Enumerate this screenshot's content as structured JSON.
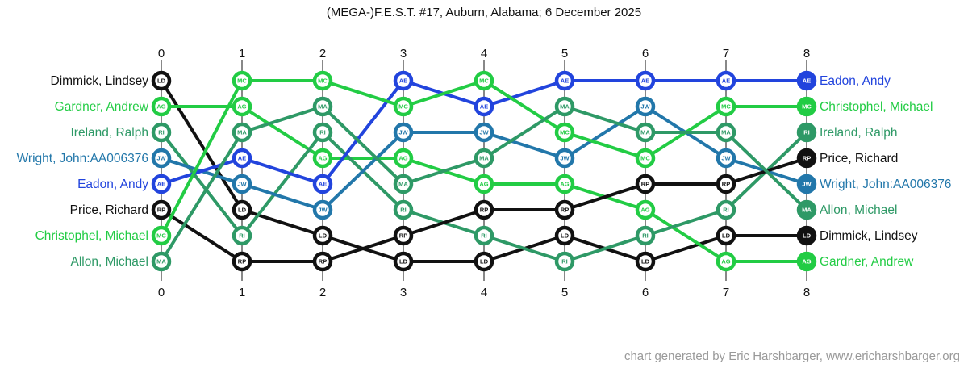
{
  "title": "(MEGA-)F.E.S.T. #17, Auburn, Alabama; 6 December 2025",
  "credit": "chart generated by Eric Harshbarger, www.ericharshbarger.org",
  "chart_data": {
    "type": "line",
    "subtype": "bump-rank-chart",
    "title": "(MEGA-)F.E.S.T. #17, Auburn, Alabama; 6 December 2025",
    "x": [
      "0",
      "1",
      "2",
      "3",
      "4",
      "5",
      "6",
      "7",
      "8"
    ],
    "rank_range": [
      1,
      8
    ],
    "axis_ticks": "top-and-bottom",
    "grid": "vertical-column-lines",
    "legend_position": "row-labels-left-and-right",
    "colors": {
      "black": "#111111",
      "green": "#22CC44",
      "seagreen": "#2E9966",
      "steelblue": "#2277AA",
      "blue": "#2244DD"
    },
    "series": [
      {
        "id": "LD",
        "name": "Dimmick, Lindsey",
        "color": "black",
        "ranks": [
          1,
          6,
          7,
          8,
          8,
          7,
          8,
          7,
          7
        ]
      },
      {
        "id": "AG",
        "name": "Gardner, Andrew",
        "color": "green",
        "ranks": [
          2,
          2,
          4,
          4,
          5,
          5,
          6,
          8,
          8
        ]
      },
      {
        "id": "RI",
        "name": "Ireland, Ralph",
        "color": "seagreen",
        "ranks": [
          3,
          7,
          3,
          6,
          7,
          8,
          7,
          6,
          3
        ]
      },
      {
        "id": "JW",
        "name": "Wright, John:AA006376",
        "color": "steelblue",
        "ranks": [
          4,
          5,
          6,
          3,
          3,
          4,
          2,
          4,
          5
        ]
      },
      {
        "id": "AE",
        "name": "Eadon, Andy",
        "color": "blue",
        "ranks": [
          5,
          4,
          5,
          1,
          2,
          1,
          1,
          1,
          1
        ]
      },
      {
        "id": "RP",
        "name": "Price, Richard",
        "color": "black",
        "ranks": [
          6,
          8,
          8,
          7,
          6,
          6,
          5,
          5,
          4
        ]
      },
      {
        "id": "MC",
        "name": "Christophel, Michael",
        "color": "green",
        "ranks": [
          7,
          1,
          1,
          2,
          1,
          3,
          4,
          2,
          2
        ]
      },
      {
        "id": "MA",
        "name": "Allon, Michael",
        "color": "seagreen",
        "ranks": [
          8,
          3,
          2,
          5,
          4,
          2,
          3,
          3,
          6
        ]
      }
    ]
  }
}
